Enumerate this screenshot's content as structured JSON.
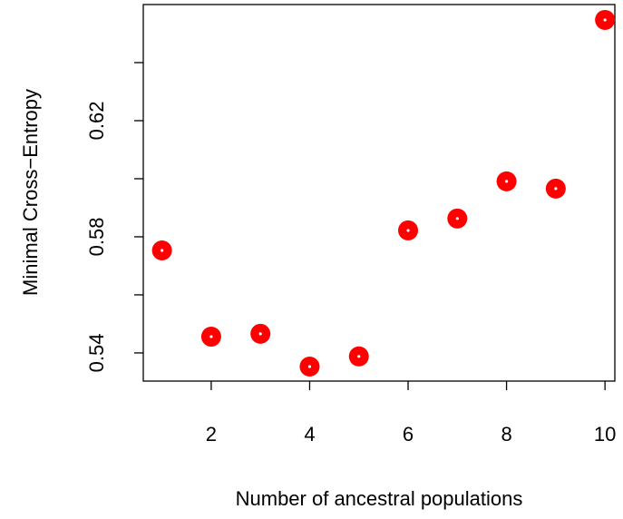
{
  "chart_data": {
    "type": "scatter",
    "x_label": "Number of ancestral populations",
    "y_label": "Minimal Cross−Entropy",
    "x": [
      1,
      2,
      3,
      4,
      5,
      6,
      7,
      8,
      9,
      10
    ],
    "values": [
      0.5753,
      0.5456,
      0.5466,
      0.5353,
      0.5388,
      0.5822,
      0.5863,
      0.5991,
      0.5966,
      0.6547
    ],
    "color": "#ff0000",
    "xlim": [
      0.62,
      10.2
    ],
    "ylim": [
      0.5303,
      0.66
    ],
    "xticks": [
      2,
      4,
      6,
      8,
      10
    ],
    "yticks": [
      0.54,
      0.58,
      0.62
    ],
    "yminorticks": [
      0.56,
      0.6,
      0.64
    ]
  }
}
